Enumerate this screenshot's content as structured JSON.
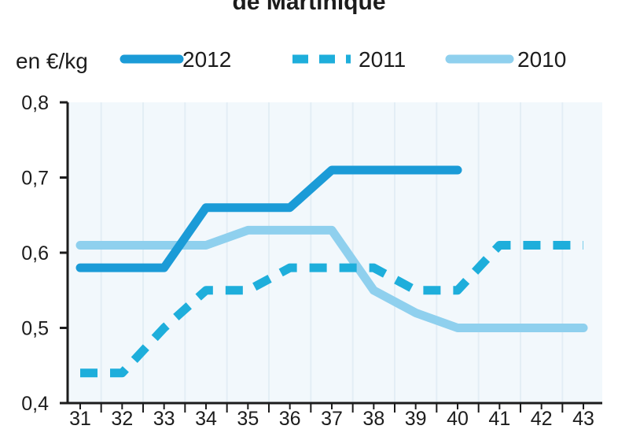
{
  "chart_data": {
    "type": "line",
    "title": "de Martinique",
    "ylabel": "en €/kg",
    "xlabel": "",
    "x": [
      31,
      32,
      33,
      34,
      35,
      36,
      37,
      38,
      39,
      40,
      41,
      42,
      43
    ],
    "xtick_labels": [
      "31",
      "32",
      "33",
      "34",
      "35",
      "36",
      "37",
      "38",
      "39",
      "40",
      "41",
      "42",
      "43"
    ],
    "ylim": [
      0.4,
      0.8
    ],
    "yticks": [
      0.4,
      0.5,
      0.6,
      0.7,
      0.8
    ],
    "ytick_labels": [
      "0,4",
      "0,5",
      "0,6",
      "0,7",
      "0,8"
    ],
    "grid": "vertical",
    "legend_position": "top",
    "background_color": "#f2f8fc",
    "series": [
      {
        "name": "2012",
        "style": "solid",
        "color": "#1b9bd7",
        "values": [
          0.58,
          0.58,
          0.58,
          0.66,
          0.66,
          0.66,
          0.71,
          0.71,
          0.71,
          0.71,
          null,
          null,
          null
        ]
      },
      {
        "name": "2011",
        "style": "dashed",
        "color": "#1eaedb",
        "values": [
          0.44,
          0.44,
          0.5,
          0.55,
          0.55,
          0.58,
          0.58,
          0.58,
          0.55,
          0.55,
          0.61,
          0.61,
          0.61
        ]
      },
      {
        "name": "2010",
        "style": "solid",
        "color": "#8fd0ee",
        "values": [
          0.61,
          0.61,
          0.61,
          0.61,
          0.63,
          0.63,
          0.63,
          0.55,
          0.52,
          0.5,
          0.5,
          0.5,
          0.5
        ]
      }
    ]
  }
}
